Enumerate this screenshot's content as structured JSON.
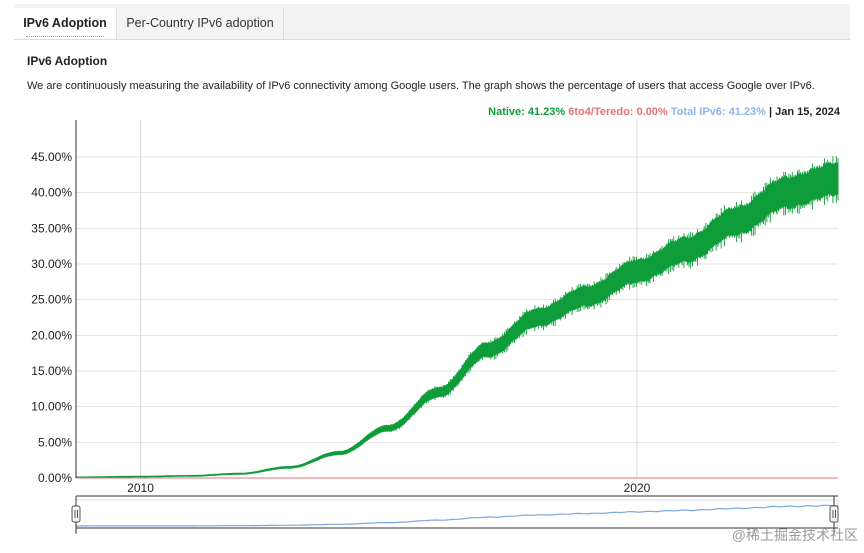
{
  "tabs": [
    {
      "label": "IPv6 Adoption",
      "active": true
    },
    {
      "label": "Per-Country IPv6 adoption",
      "active": false
    }
  ],
  "section_title": "IPv6 Adoption",
  "description": "We are continuously measuring the availability of IPv6 connectivity among Google users. The graph shows the percentage of users that access Google over IPv6.",
  "readout": {
    "native": "Native: 41.23%",
    "teredo": "6to4/Teredo: 0.00%",
    "total": "Total IPv6: 41.23%",
    "separator": "|",
    "date": "Jan 15, 2024"
  },
  "colors": {
    "native": "#0f9d3b",
    "teredo": "#e57373",
    "total": "#8fb3e8",
    "navigator_line": "#7aa7de"
  },
  "watermark": "@稀土掘金技术社区",
  "chart_data": {
    "type": "area",
    "title": "",
    "xlabel": "",
    "ylabel": "",
    "x_range": [
      2008.7,
      2024.05
    ],
    "ylim": [
      0,
      45
    ],
    "yticks": [
      0,
      5,
      10,
      15,
      20,
      25,
      30,
      35,
      40,
      45
    ],
    "ytick_labels": [
      "0.00%",
      "5.00%",
      "10.00%",
      "15.00%",
      "20.00%",
      "25.00%",
      "30.00%",
      "35.00%",
      "40.00%",
      "45.00%"
    ],
    "xticks": [
      2010,
      2020
    ],
    "xtick_labels": [
      "2010",
      "2020"
    ],
    "grid": true,
    "series": [
      {
        "name": "Native",
        "x": [
          2008.7,
          2010,
          2011,
          2012,
          2013,
          2014,
          2015,
          2016,
          2017,
          2018,
          2019,
          2020,
          2021,
          2022,
          2023,
          2024.05
        ],
        "values": [
          0.1,
          0.2,
          0.3,
          0.6,
          1.5,
          3.5,
          7,
          12,
          18,
          22.5,
          25.5,
          29,
          32,
          36,
          40,
          42
        ]
      },
      {
        "name": "6to4/Teredo",
        "x": [
          2008.7,
          2024.05
        ],
        "values": [
          0,
          0
        ]
      }
    ]
  }
}
